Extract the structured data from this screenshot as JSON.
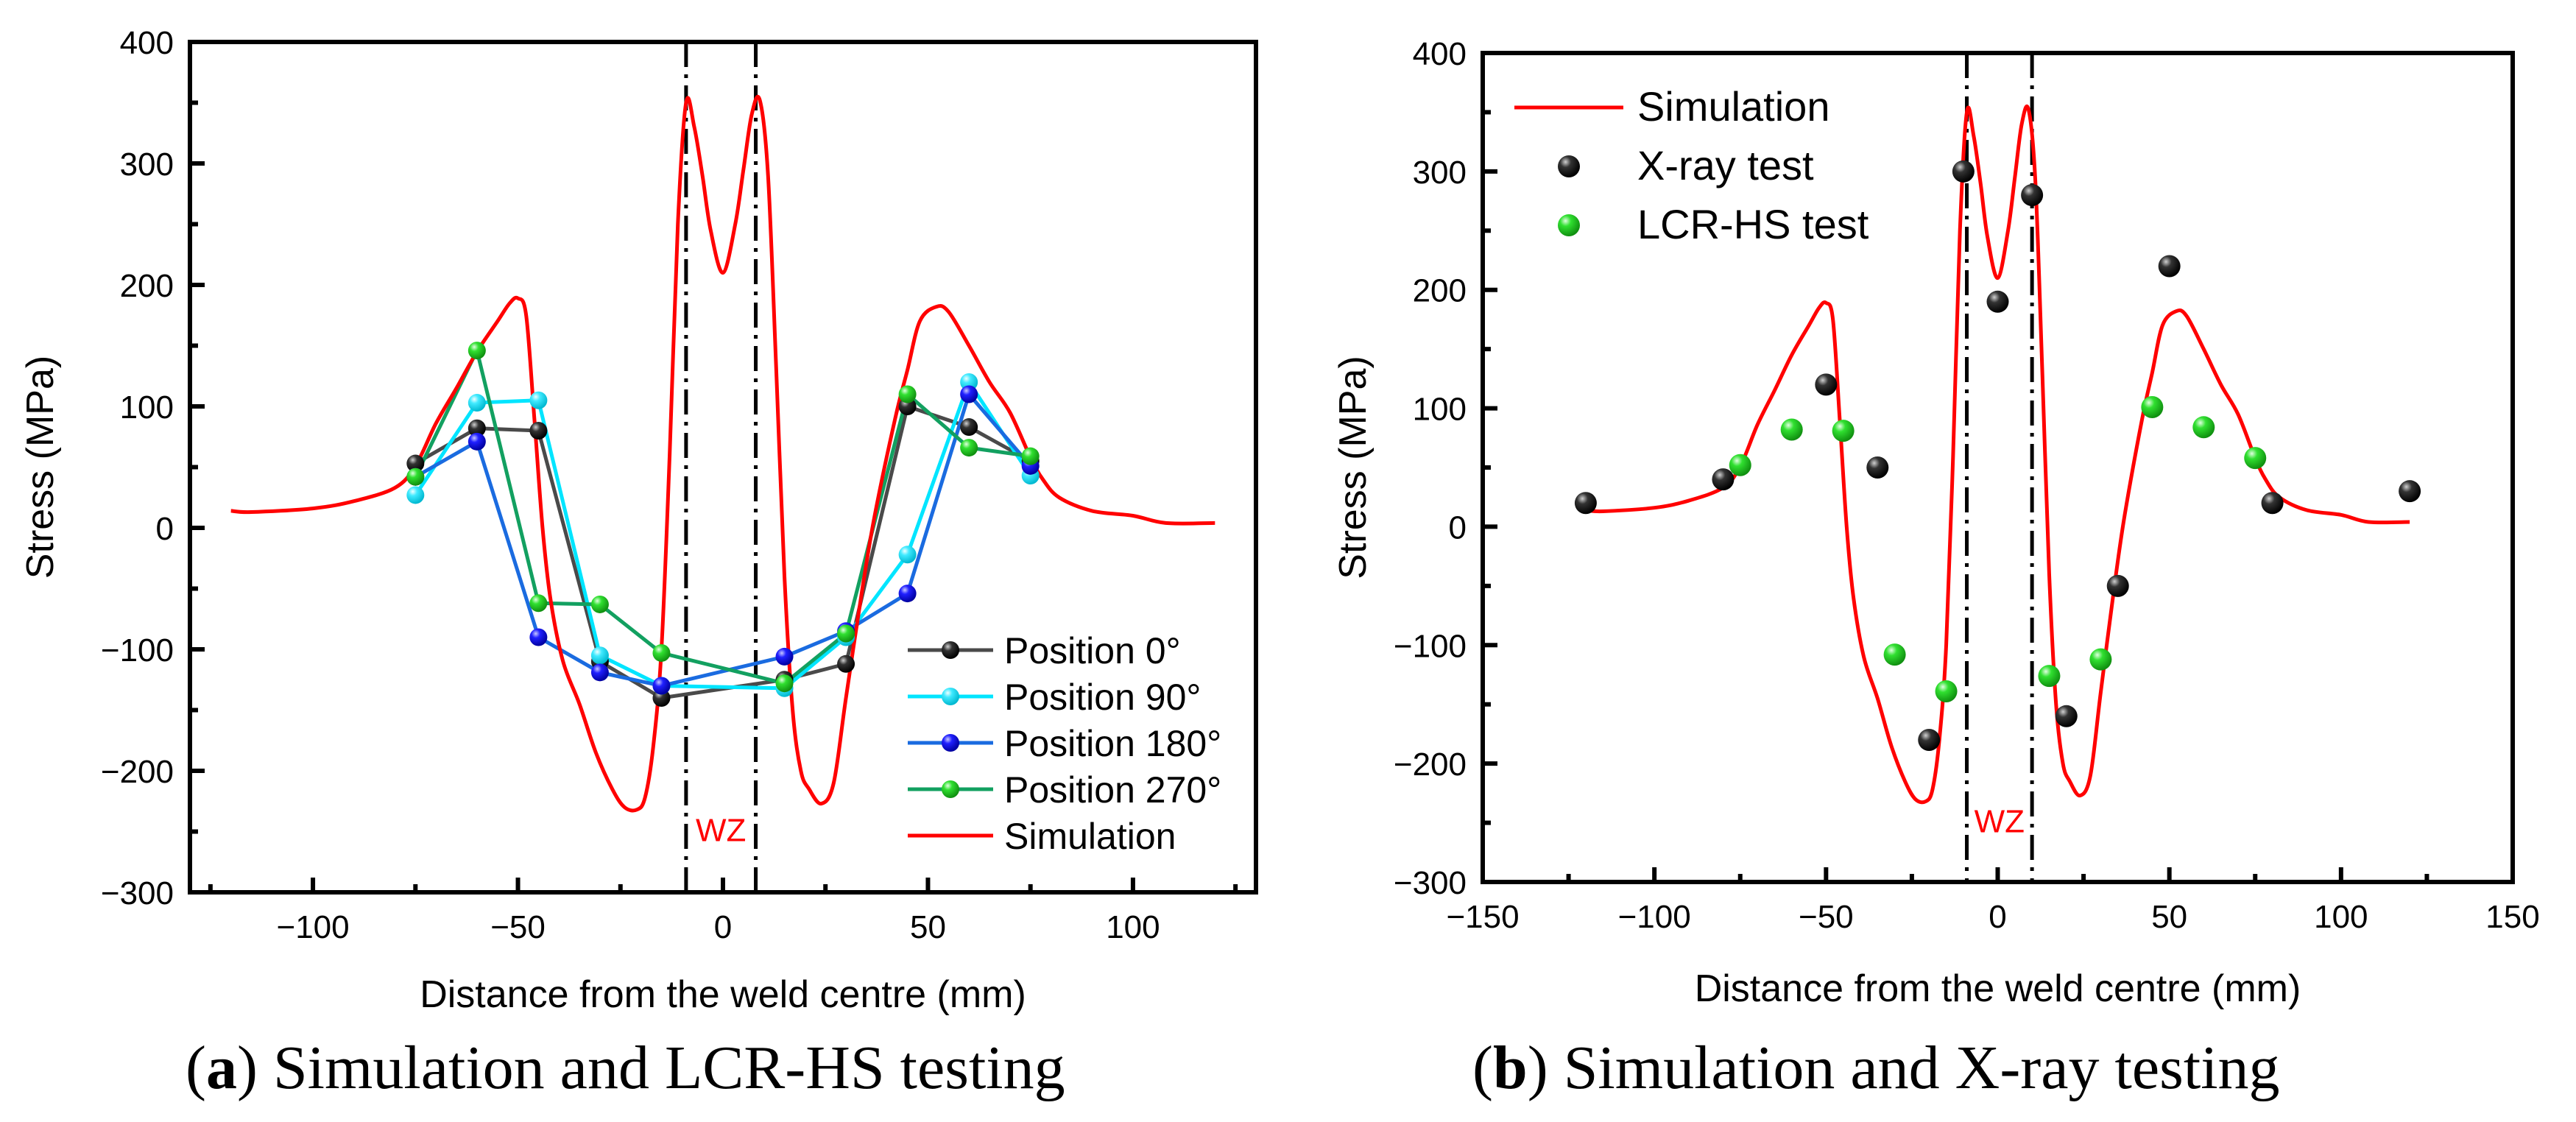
{
  "chart_data": [
    {
      "type": "line",
      "panel": "a",
      "caption_label": "a",
      "caption": "Simulation and LCR-HS testing",
      "xlabel": "Distance from the weld centre (mm)",
      "ylabel": "Stress (MPa)",
      "xlim": [
        -130,
        130
      ],
      "ylim": [
        -300,
        400
      ],
      "x_ticks": [
        -100,
        -50,
        0,
        50,
        100
      ],
      "x_tick_labels": [
        "−100",
        "−50",
        "0",
        "50",
        "100"
      ],
      "y_ticks": [
        -300,
        -200,
        -100,
        0,
        100,
        200,
        300,
        400
      ],
      "y_tick_labels": [
        "−300",
        "−200",
        "−100",
        "0",
        "100",
        "200",
        "300",
        "400"
      ],
      "grid": false,
      "legend_position": "bottom-right",
      "wz_label": "WZ",
      "wz_bounds": [
        -9,
        8
      ],
      "series": [
        {
          "name": "Position 0°",
          "kind": "line+marker",
          "line_color": "#4a4a4a",
          "marker_color": "#111111",
          "x": [
            -75,
            -60,
            -45,
            -30,
            -15,
            15,
            30,
            45,
            60,
            75
          ],
          "y": [
            53,
            82,
            80,
            -110,
            -140,
            -125,
            -112,
            100,
            83,
            55
          ]
        },
        {
          "name": "Position 90°",
          "kind": "line+marker",
          "line_color": "#00e5ff",
          "marker_color": "#33e8ff",
          "x": [
            -75,
            -60,
            -45,
            -30,
            -15,
            15,
            30,
            45,
            60,
            75
          ],
          "y": [
            27,
            103,
            105,
            -105,
            -130,
            -132,
            -90,
            -22,
            120,
            43
          ]
        },
        {
          "name": "Position 180°",
          "kind": "line+marker",
          "line_color": "#1a6be0",
          "marker_color": "#1414f0",
          "x": [
            -75,
            -60,
            -45,
            -30,
            -15,
            15,
            30,
            45,
            60,
            75
          ],
          "y": [
            42,
            71,
            -90,
            -119,
            -130,
            -106,
            -85,
            -54,
            110,
            51
          ]
        },
        {
          "name": "Position 270°",
          "kind": "line+marker",
          "line_color": "#12a060",
          "marker_color": "#22d422",
          "x": [
            -75,
            -60,
            -45,
            -30,
            -15,
            15,
            30,
            45,
            60,
            75
          ],
          "y": [
            42,
            146,
            -62,
            -63,
            -103,
            -128,
            -87,
            110,
            66,
            59
          ]
        },
        {
          "name": "Simulation",
          "kind": "line",
          "line_color": "#ff0000",
          "x": [
            -120,
            -115,
            -100,
            -90,
            -80,
            -75,
            -70,
            -65,
            -60,
            -55,
            -52,
            -50,
            -48,
            -46,
            -44,
            -42,
            -39,
            -35,
            -31,
            -27,
            -24,
            -21,
            -19,
            -17,
            -15,
            -13,
            -11,
            -9,
            -7,
            -5,
            -3,
            0,
            3,
            5,
            7,
            9,
            11,
            13,
            15,
            17,
            19,
            21,
            24,
            27,
            30,
            34,
            37,
            42,
            45,
            48,
            52,
            55,
            60,
            65,
            70,
            75,
            78,
            82,
            90,
            100,
            108,
            120
          ],
          "y": [
            14,
            13,
            16,
            22,
            33,
            51,
            86,
            115,
            145,
            170,
            185,
            189,
            175,
            90,
            0,
            -60,
            -110,
            -145,
            -185,
            -215,
            -230,
            -232,
            -222,
            -180,
            -100,
            60,
            250,
            350,
            330,
            290,
            245,
            210,
            250,
            295,
            340,
            352,
            290,
            130,
            -40,
            -150,
            -200,
            -215,
            -227,
            -210,
            -140,
            -50,
            10,
            90,
            130,
            170,
            182,
            178,
            150,
            120,
            95,
            58,
            40,
            25,
            14,
            10,
            4,
            4
          ]
        }
      ]
    },
    {
      "type": "scatter",
      "panel": "b",
      "caption_label": "b",
      "caption": "Simulation and X-ray testing",
      "xlabel": "Distance from the weld centre (mm)",
      "ylabel": "Stress (MPa)",
      "xlim": [
        -150,
        150
      ],
      "ylim": [
        -300,
        400
      ],
      "x_ticks": [
        -150,
        -100,
        -50,
        0,
        50,
        100,
        150
      ],
      "x_tick_labels": [
        "−150",
        "−100",
        "−50",
        "0",
        "50",
        "100",
        "150"
      ],
      "y_ticks": [
        -300,
        -200,
        -100,
        0,
        100,
        200,
        300,
        400
      ],
      "y_tick_labels": [
        "−300",
        "−200",
        "−100",
        "0",
        "100",
        "200",
        "300",
        "400"
      ],
      "grid": false,
      "legend_position": "top-left",
      "wz_label": "WZ",
      "wz_bounds": [
        -9,
        10
      ],
      "series": [
        {
          "name": "Simulation",
          "kind": "line",
          "line_color": "#ff0000",
          "x": [
            -120,
            -115,
            -100,
            -90,
            -80,
            -75,
            -70,
            -65,
            -60,
            -55,
            -52,
            -50,
            -48,
            -46,
            -44,
            -42,
            -39,
            -35,
            -31,
            -27,
            -24,
            -21,
            -19,
            -17,
            -15,
            -13,
            -11,
            -9,
            -7,
            -5,
            -3,
            0,
            3,
            5,
            7,
            9,
            11,
            13,
            15,
            17,
            19,
            21,
            24,
            27,
            30,
            34,
            37,
            42,
            45,
            48,
            52,
            55,
            60,
            65,
            70,
            75,
            78,
            82,
            90,
            100,
            108,
            120
          ],
          "y": [
            14,
            13,
            16,
            22,
            33,
            51,
            86,
            115,
            145,
            170,
            185,
            189,
            175,
            90,
            0,
            -60,
            -110,
            -145,
            -185,
            -215,
            -230,
            -232,
            -222,
            -180,
            -100,
            60,
            250,
            350,
            330,
            290,
            245,
            210,
            250,
            295,
            340,
            352,
            290,
            130,
            -40,
            -150,
            -200,
            -215,
            -227,
            -210,
            -140,
            -50,
            10,
            90,
            130,
            170,
            182,
            178,
            150,
            120,
            95,
            58,
            40,
            25,
            14,
            10,
            4,
            4
          ]
        },
        {
          "name": "X-ray test",
          "kind": "marker",
          "marker_color": "#111111",
          "x": [
            -120,
            -80,
            -50,
            -35,
            -20,
            -10,
            0,
            10,
            20,
            35,
            50,
            80,
            120
          ],
          "y": [
            20,
            40,
            120,
            50,
            -180,
            300,
            190,
            280,
            -160,
            -50,
            220,
            20,
            30
          ]
        },
        {
          "name": "LCR-HS test",
          "kind": "marker",
          "marker_color": "#22ee22",
          "x": [
            -75,
            -60,
            -45,
            -30,
            -15,
            15,
            30,
            45,
            60,
            75
          ],
          "y": [
            52,
            82,
            81,
            -108,
            -139,
            -126,
            -112,
            101,
            84,
            58
          ]
        }
      ]
    }
  ]
}
